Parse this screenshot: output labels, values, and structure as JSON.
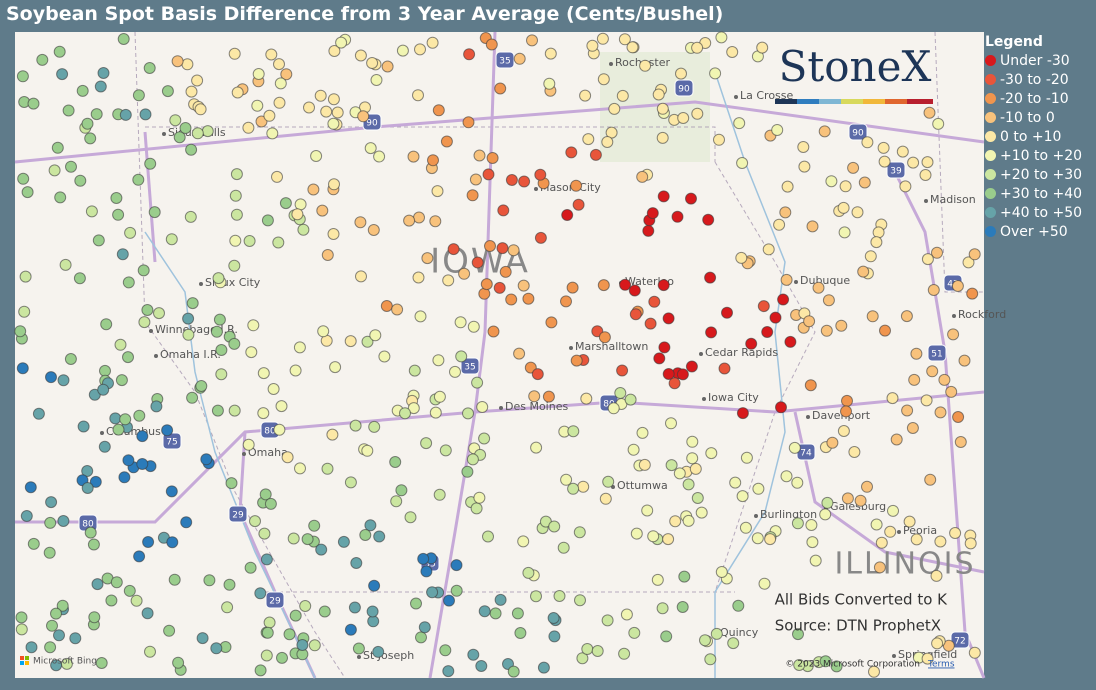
{
  "header": {
    "title": "Soybean Spot Basis Difference from 3 Year Average (Cents/Bushel)"
  },
  "legend": {
    "title": "Legend",
    "items": [
      {
        "label": "Under -30",
        "color": "#d7191c"
      },
      {
        "label": "-30 to -20",
        "color": "#e8553a"
      },
      {
        "label": "-20 to -10",
        "color": "#f0954e"
      },
      {
        "label": "-10 to 0",
        "color": "#f8c27c"
      },
      {
        "label": "0 to +10",
        "color": "#fce8a6"
      },
      {
        "label": "+10 to +20",
        "color": "#f1f5b2"
      },
      {
        "label": "+20 to +30",
        "color": "#cbe6a0"
      },
      {
        "label": "+30 to +40",
        "color": "#9acd8c"
      },
      {
        "label": "+40 to +50",
        "color": "#66a3a8"
      },
      {
        "label": "Over +50",
        "color": "#2b7bba"
      }
    ]
  },
  "map": {
    "logo": "StoneX",
    "places": [
      "Rochester",
      "La Crosse",
      "Mason City",
      "Madison",
      "Sioux Falls",
      "Sioux City",
      "Waterloo",
      "Dubuque",
      "Rockford",
      "Winnebago I.R.",
      "Omaha I.R.",
      "Marshalltown",
      "Cedar Rapids",
      "Iowa City",
      "Davenport",
      "Des Moines",
      "Columbus",
      "Omaha",
      "Ottumwa",
      "Galesburg",
      "Peoria",
      "Burlington",
      "St Joseph",
      "Springfield",
      "Quincy"
    ],
    "regions": [
      "IOWA",
      "ILLINOIS"
    ],
    "shields": [
      "35",
      "90",
      "90",
      "90",
      "39",
      "43",
      "51",
      "80",
      "80",
      "80",
      "74",
      "29",
      "29",
      "35",
      "72",
      "35",
      "75"
    ],
    "notes": [
      "All Bids Converted to K",
      "Source: DTN ProphetX"
    ],
    "attribution": "© 2023 Microsoft Corporation",
    "terms": "Terms",
    "provider": "Microsoft Bing"
  }
}
